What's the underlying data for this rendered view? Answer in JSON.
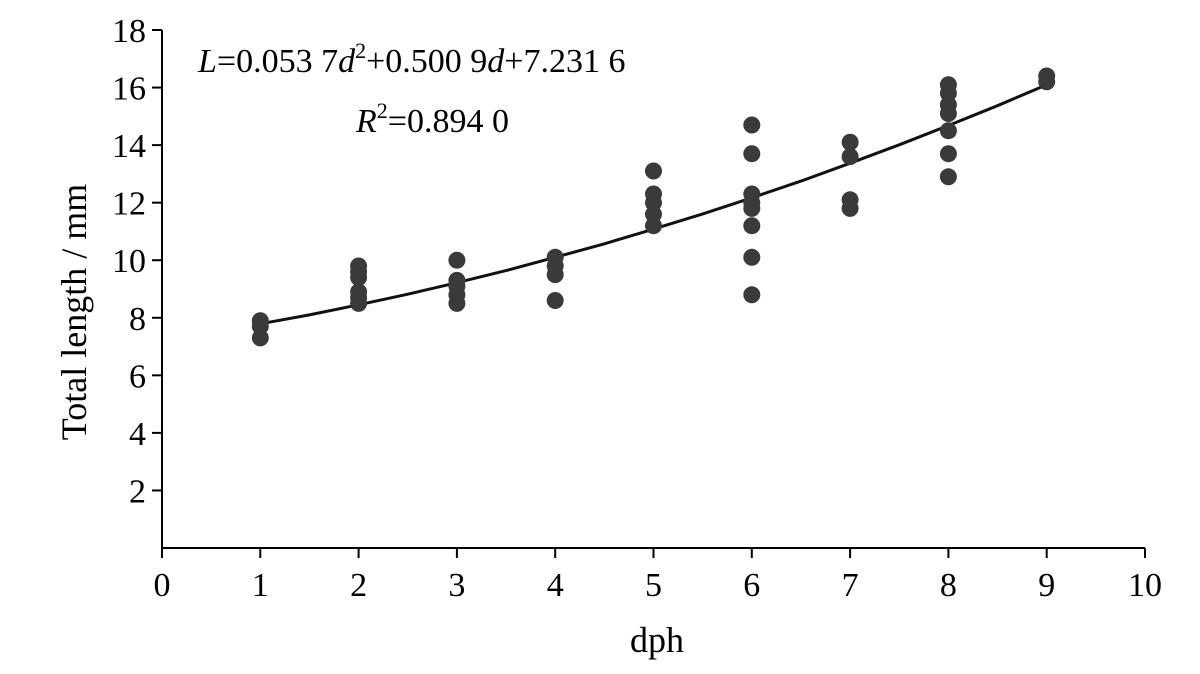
{
  "chart_data": {
    "type": "scatter",
    "title": "",
    "xlabel": "dph",
    "ylabel": "Total length / mm",
    "xlim": [
      0,
      10
    ],
    "ylim": [
      0,
      18
    ],
    "x_ticks": [
      0,
      1,
      2,
      3,
      4,
      5,
      6,
      7,
      8,
      9,
      10
    ],
    "y_ticks": [
      2,
      4,
      6,
      8,
      10,
      12,
      14,
      16,
      18
    ],
    "grid": false,
    "point_color": "#3a3a3a",
    "line_color": "#111111",
    "series": [
      {
        "type": "scatter",
        "points": [
          {
            "x": 1,
            "y": 7.9
          },
          {
            "x": 1,
            "y": 7.7
          },
          {
            "x": 1,
            "y": 7.3
          },
          {
            "x": 2,
            "y": 9.8
          },
          {
            "x": 2,
            "y": 9.6
          },
          {
            "x": 2,
            "y": 9.4
          },
          {
            "x": 2,
            "y": 8.9
          },
          {
            "x": 2,
            "y": 8.7
          },
          {
            "x": 2,
            "y": 8.5
          },
          {
            "x": 3,
            "y": 10.0
          },
          {
            "x": 3,
            "y": 9.3
          },
          {
            "x": 3,
            "y": 9.1
          },
          {
            "x": 3,
            "y": 8.8
          },
          {
            "x": 3,
            "y": 8.5
          },
          {
            "x": 4,
            "y": 10.1
          },
          {
            "x": 4,
            "y": 9.8
          },
          {
            "x": 4,
            "y": 9.5
          },
          {
            "x": 4,
            "y": 8.6
          },
          {
            "x": 5,
            "y": 13.1
          },
          {
            "x": 5,
            "y": 12.3
          },
          {
            "x": 5,
            "y": 12.0
          },
          {
            "x": 5,
            "y": 11.6
          },
          {
            "x": 5,
            "y": 11.2
          },
          {
            "x": 6,
            "y": 14.7
          },
          {
            "x": 6,
            "y": 13.7
          },
          {
            "x": 6,
            "y": 12.3
          },
          {
            "x": 6,
            "y": 12.0
          },
          {
            "x": 6,
            "y": 11.8
          },
          {
            "x": 6,
            "y": 11.2
          },
          {
            "x": 6,
            "y": 10.1
          },
          {
            "x": 6,
            "y": 8.8
          },
          {
            "x": 7,
            "y": 14.1
          },
          {
            "x": 7,
            "y": 13.6
          },
          {
            "x": 7,
            "y": 12.1
          },
          {
            "x": 7,
            "y": 11.8
          },
          {
            "x": 8,
            "y": 16.1
          },
          {
            "x": 8,
            "y": 15.8
          },
          {
            "x": 8,
            "y": 15.4
          },
          {
            "x": 8,
            "y": 15.1
          },
          {
            "x": 8,
            "y": 14.5
          },
          {
            "x": 8,
            "y": 13.7
          },
          {
            "x": 8,
            "y": 12.9
          },
          {
            "x": 9,
            "y": 16.4
          },
          {
            "x": 9,
            "y": 16.2
          }
        ]
      },
      {
        "type": "line",
        "x": [
          1,
          1.5,
          2,
          2.5,
          3,
          3.5,
          4,
          4.5,
          5,
          5.5,
          6,
          6.5,
          7,
          7.5,
          8,
          8.5,
          9
        ],
        "y": [
          7.79,
          8.1,
          8.45,
          8.82,
          9.22,
          9.64,
          10.1,
          10.57,
          11.08,
          11.61,
          12.17,
          12.75,
          13.37,
          14.01,
          14.68,
          15.37,
          16.1
        ]
      }
    ],
    "annotations": {
      "eq_var_L": "L",
      "eq_part1": "=0.053 7",
      "eq_var_d1": "d",
      "eq_exp1": "2",
      "eq_part2": "+0.500 9",
      "eq_var_d2": "d",
      "eq_part3": "+7.231 6",
      "r2_var": "R",
      "r2_exp": "2",
      "r2_value": "=0.894 0"
    }
  }
}
